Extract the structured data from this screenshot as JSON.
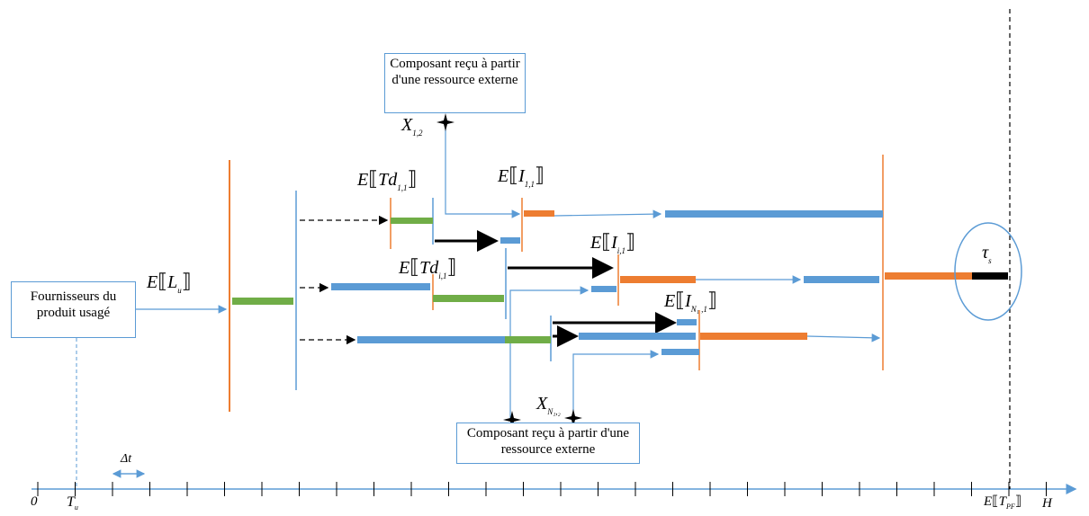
{
  "boxes": {
    "top_component": "Composant reçu à partir d'une ressource externe",
    "bottom_component": "Composant reçu à partir d'une ressource externe",
    "supplier": "Fournisseurs du produit usagé"
  },
  "labels": {
    "x12": {
      "main": "X",
      "sub": "1,2"
    },
    "xn": {
      "main": "X",
      "sub": "N₁,₂"
    },
    "tau": {
      "main": "τ",
      "sub": "s"
    },
    "td11": {
      "pre": "E",
      "main": "Td",
      "sub": "1,1"
    },
    "tdi1": {
      "pre": "E",
      "main": "Td",
      "sub": "i,1"
    },
    "i11": {
      "pre": "E",
      "main": "I",
      "sub": "1,1"
    },
    "ii1": {
      "pre": "E",
      "main": "I",
      "sub": "i,1"
    },
    "in1": {
      "pre": "E",
      "main": "I",
      "sub": "N₁ ,1"
    },
    "lu": {
      "pre": "E",
      "main": "L",
      "sub": "u"
    }
  },
  "axis": {
    "zero": "0",
    "tu": {
      "main": "T",
      "sub": "u"
    },
    "delta_t": "Δt",
    "tpf": {
      "pre": "E",
      "main": "T",
      "sub": "PF"
    },
    "h": "H"
  },
  "colors": {
    "blue": "#5b9bd5",
    "orange": "#ed7d31",
    "green": "#70ad47",
    "black": "#000000"
  }
}
